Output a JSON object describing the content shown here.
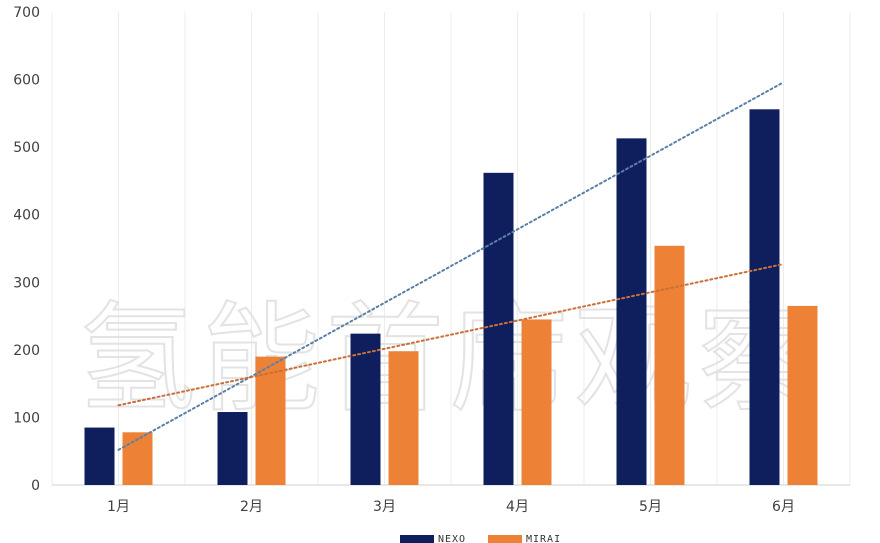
{
  "chart_data": {
    "type": "bar",
    "categories": [
      "1月",
      "2月",
      "3月",
      "4月",
      "5月",
      "6月"
    ],
    "series": [
      {
        "name": "NEXO",
        "color": "#0f1f5e",
        "values": [
          85,
          108,
          224,
          462,
          513,
          556
        ]
      },
      {
        "name": "MIRAI",
        "color": "#ed8136",
        "values": [
          78,
          190,
          198,
          245,
          354,
          265
        ]
      }
    ],
    "trendlines": [
      {
        "series": "NEXO",
        "color": "#5b7fa6",
        "style": "dotted",
        "start": 52,
        "end": 596
      },
      {
        "series": "MIRAI",
        "color": "#c9703a",
        "style": "dotted",
        "start": 118,
        "end": 327
      }
    ],
    "ylim": [
      0,
      700
    ],
    "yticks": [
      0,
      100,
      200,
      300,
      400,
      500,
      600,
      700
    ],
    "grid": "vertical",
    "legend": "bottom-center",
    "watermark": "氢能首席观察"
  }
}
